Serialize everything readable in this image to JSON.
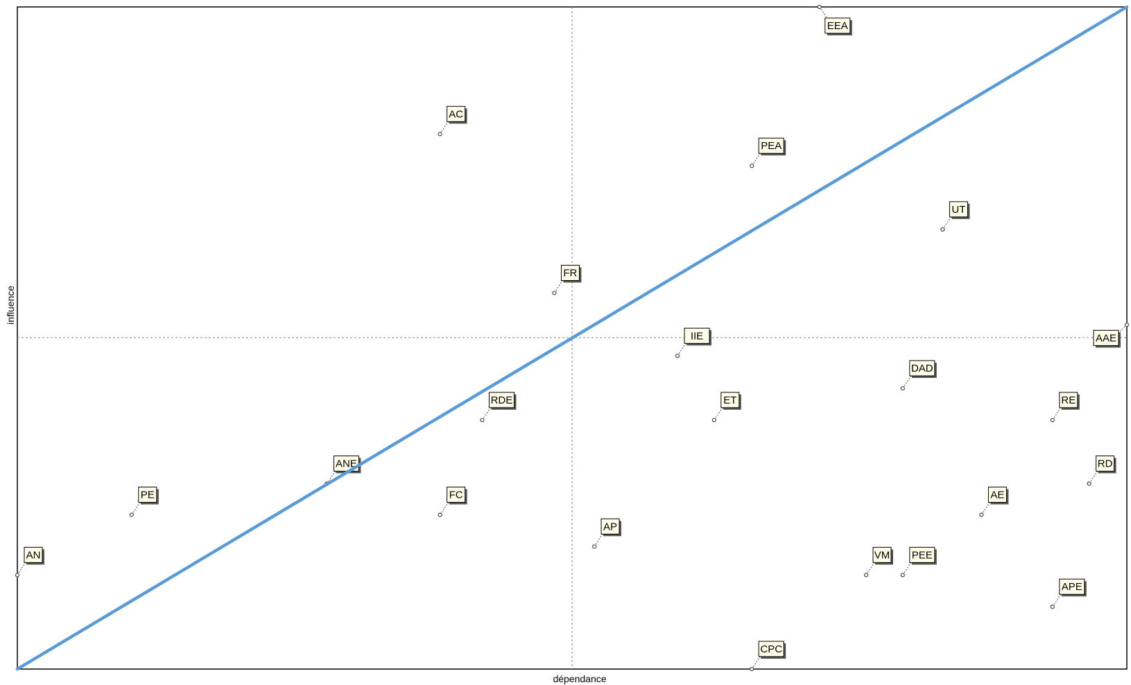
{
  "chart_data": {
    "type": "scatter",
    "title": "",
    "xlabel": "dépendance",
    "ylabel": "influence",
    "xlim": [
      0,
      100
    ],
    "ylim": [
      0,
      100
    ],
    "grid": false,
    "reference_lines": {
      "x_mid": 50,
      "y_mid": 50,
      "style": "dashed"
    },
    "diagonal": {
      "from": [
        0,
        0
      ],
      "to": [
        100,
        100
      ],
      "color": "#5b9bd5"
    },
    "colors": {
      "diagonal": "#5b9bd5",
      "label_fill": "#fffde7",
      "label_shadow": "#555555",
      "frame": "#000000",
      "guide": "#808080"
    },
    "points": [
      {
        "label": "EEA",
        "x": 72.3,
        "y": 100.0
      },
      {
        "label": "AC",
        "x": 38.1,
        "y": 80.8
      },
      {
        "label": "PEA",
        "x": 66.2,
        "y": 76.0
      },
      {
        "label": "UT",
        "x": 83.4,
        "y": 66.4
      },
      {
        "label": "FR",
        "x": 48.4,
        "y": 56.8
      },
      {
        "label": "IIE",
        "x": 59.5,
        "y": 47.3
      },
      {
        "label": "AAE",
        "x": 100.0,
        "y": 52.0
      },
      {
        "label": "DAD",
        "x": 79.8,
        "y": 42.4
      },
      {
        "label": "RDE",
        "x": 41.9,
        "y": 37.6
      },
      {
        "label": "ET",
        "x": 62.8,
        "y": 37.6
      },
      {
        "label": "RE",
        "x": 93.3,
        "y": 37.6
      },
      {
        "label": "ANE",
        "x": 27.9,
        "y": 28.0
      },
      {
        "label": "RD",
        "x": 96.6,
        "y": 28.0
      },
      {
        "label": "PE",
        "x": 10.3,
        "y": 23.3
      },
      {
        "label": "FC",
        "x": 38.1,
        "y": 23.3
      },
      {
        "label": "AE",
        "x": 86.9,
        "y": 23.3
      },
      {
        "label": "AP",
        "x": 52.0,
        "y": 18.5
      },
      {
        "label": "AN",
        "x": 0.0,
        "y": 14.2
      },
      {
        "label": "VM",
        "x": 76.5,
        "y": 14.2
      },
      {
        "label": "PEE",
        "x": 79.8,
        "y": 14.2
      },
      {
        "label": "APE",
        "x": 93.3,
        "y": 9.4
      },
      {
        "label": "CPC",
        "x": 66.2,
        "y": 0.0
      }
    ]
  }
}
